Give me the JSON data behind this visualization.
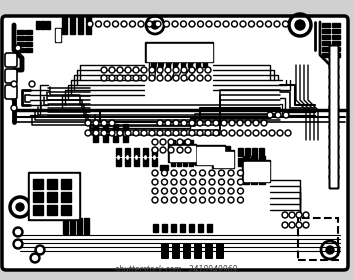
{
  "bg_color": "#d0d0d0",
  "board_color": "#000000",
  "trace_color": "#000000",
  "white": "#ffffff",
  "figsize": [
    3.53,
    2.8
  ],
  "dpi": 100,
  "watermark": "shutterstock.com · 2418949969"
}
